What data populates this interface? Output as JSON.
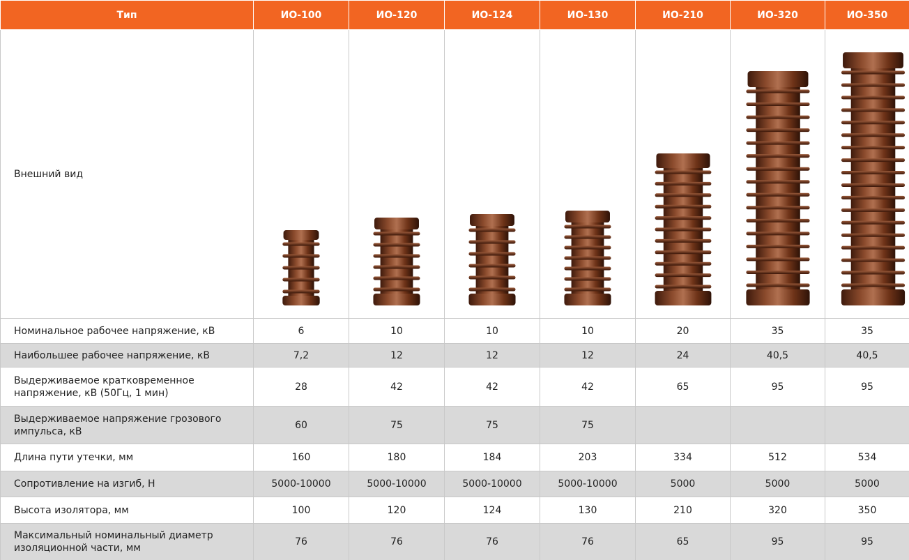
{
  "table": {
    "header": [
      "Тип",
      "ИО-100",
      "ИО-120",
      "ИО-124",
      "ИО-130",
      "ИО-210",
      "ИО-320",
      "ИО-350"
    ],
    "image_row_label": "Внешний вид",
    "rows": [
      [
        "Номинальное рабочее напряжение, кВ",
        "6",
        "10",
        "10",
        "10",
        "20",
        "35",
        "35"
      ],
      [
        "Наибольшее рабочее напряжение, кВ",
        "7,2",
        "12",
        "12",
        "12",
        "24",
        "40,5",
        "40,5"
      ],
      [
        "Выдерживаемое кратковременное напряжение, кВ (50Гц, 1 мин)",
        "28",
        "42",
        "42",
        "42",
        "65",
        "95",
        "95"
      ],
      [
        "Выдерживаемое напряжение грозового импульса, кВ",
        "60",
        "75",
        "75",
        "75",
        null,
        null,
        null
      ],
      [
        "Длина пути утечки, мм",
        "160",
        "180",
        "184",
        "203",
        "334",
        "512",
        "534"
      ],
      [
        "Сопротивление на изгиб, Н",
        "5000-10000",
        "5000-10000",
        "5000-10000",
        "5000-10000",
        "5000",
        "5000",
        "5000"
      ],
      [
        "Высота изолятора, мм",
        "100",
        "120",
        "124",
        "130",
        "210",
        "320",
        "350"
      ],
      [
        "Максимальный номинальный диаметр изоляционной части, мм",
        "76",
        "76",
        "76",
        "76",
        "65",
        "95",
        "95"
      ]
    ]
  }
}
